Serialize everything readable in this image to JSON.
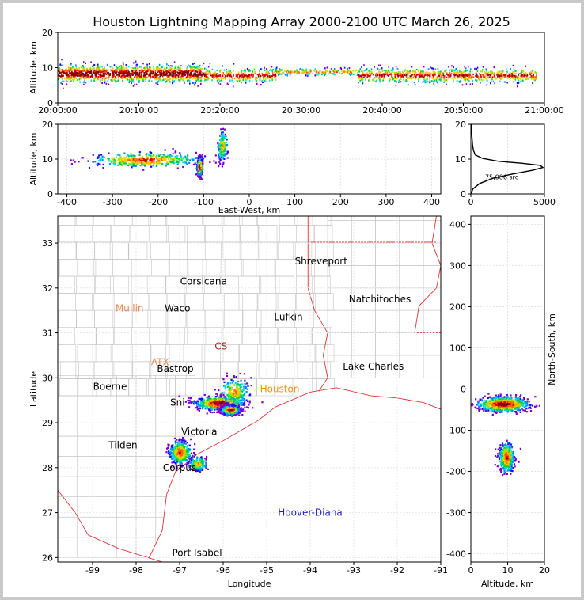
{
  "title": "Houston Lightning Mapping Array 2000-2100 UTC March 26, 2025",
  "colors": {
    "border": "#c9c9c9",
    "bg": "#ffffff",
    "state_lines": "#dd2222",
    "county_lines": "#bbbbbb",
    "grid": "#dddddd",
    "coast": "#dd3333"
  },
  "chart_data": [
    {
      "type": "scatter",
      "panel": "altitude-time",
      "ylabel": "Altitude, km",
      "ylim": [
        0,
        20
      ],
      "y_ticks": [
        "0",
        "10",
        "20"
      ],
      "x_ticks": [
        "20:00:00",
        "20:10:00",
        "20:20:00",
        "20:30:00",
        "20:40:00",
        "20:50:00",
        "21:00:00"
      ],
      "xlim_minutes": [
        0,
        60
      ],
      "blobs": [
        {
          "x": [
            0,
            18
          ],
          "y": [
            8.5,
            2.5
          ],
          "level": "dense"
        },
        {
          "x": [
            18,
            27
          ],
          "y": [
            8,
            2
          ],
          "level": "medium"
        },
        {
          "x": [
            27,
            37
          ],
          "y": [
            9,
            1
          ],
          "level": "sparse"
        },
        {
          "x": [
            37,
            59
          ],
          "y": [
            8,
            2
          ],
          "level": "medium"
        }
      ]
    },
    {
      "type": "scatter",
      "panel": "altitude-eastwest",
      "xlabel": "East-West, km",
      "ylabel": "Altitude, km",
      "xlim": [
        -420,
        420
      ],
      "ylim": [
        0,
        20
      ],
      "x_ticks": [
        "-400",
        "-300",
        "-200",
        "-100",
        "0",
        "100",
        "200",
        "300",
        "400"
      ],
      "y_ticks": [
        "0",
        "10",
        "20"
      ],
      "blobs": [
        {
          "x": [
            -230,
            -120
          ],
          "y": [
            10,
            2
          ],
          "level": "medium"
        },
        {
          "x": [
            -110,
            -5
          ],
          "y": [
            8,
            2.5
          ],
          "level": "dense"
        },
        {
          "x": [
            -60,
            -10
          ],
          "y": [
            14,
            4
          ],
          "level": "sparse"
        }
      ]
    },
    {
      "type": "line",
      "panel": "altitude-histogram",
      "xlim": [
        0,
        5000
      ],
      "ylim": [
        0,
        20
      ],
      "x_ticks": [
        "0",
        "5000"
      ],
      "y_ticks": [
        "0",
        "10",
        "20"
      ],
      "annotation": "75,086 src",
      "x": [
        0,
        150,
        600,
        1500,
        2800,
        4200,
        4900,
        4700,
        3500,
        1800,
        800,
        300,
        180,
        120,
        80,
        50,
        30
      ],
      "y": [
        0,
        1.5,
        3,
        4.5,
        5.7,
        6.8,
        7.6,
        8.2,
        8.8,
        9.4,
        10.2,
        11.2,
        12.5,
        14,
        16,
        18,
        20
      ]
    },
    {
      "type": "scatter",
      "panel": "plan-view",
      "xlabel": "Longitude",
      "ylabel": "Latitude",
      "xlim": [
        -99.8,
        -91
      ],
      "ylim": [
        25.9,
        33.6
      ],
      "x_ticks": [
        "-99",
        "-98",
        "-97",
        "-96",
        "-95",
        "-94",
        "-93",
        "-92",
        "-91"
      ],
      "y_ticks": [
        "26",
        "27",
        "28",
        "29",
        "30",
        "31",
        "32",
        "33"
      ],
      "blobs": [
        {
          "x": [
            -96.1,
            0.55
          ],
          "y": [
            29.45,
            0.15
          ],
          "level": "dense"
        },
        {
          "x": [
            -95.85,
            0.2
          ],
          "y": [
            29.3,
            0.1
          ],
          "level": "dense"
        },
        {
          "x": [
            -95.75,
            0.3
          ],
          "y": [
            29.7,
            0.3
          ],
          "level": "sparse"
        },
        {
          "x": [
            -97.0,
            0.25
          ],
          "y": [
            28.35,
            0.25
          ],
          "level": "medium"
        },
        {
          "x": [
            -96.6,
            0.2
          ],
          "y": [
            28.1,
            0.15
          ],
          "level": "sparse"
        }
      ],
      "cities": [
        {
          "name": "Shreveport",
          "lon": -93.75,
          "lat": 32.6,
          "color": "#000000"
        },
        {
          "name": "Corsicana",
          "lon": -96.45,
          "lat": 32.15,
          "color": "#000000"
        },
        {
          "name": "Natchitoches",
          "lon": -92.4,
          "lat": 31.75,
          "color": "#000000"
        },
        {
          "name": "Mullin",
          "lon": -98.15,
          "lat": 31.55,
          "color": "#ee8855"
        },
        {
          "name": "Waco",
          "lon": -97.05,
          "lat": 31.55,
          "color": "#000000"
        },
        {
          "name": "Lufkin",
          "lon": -94.5,
          "lat": 31.35,
          "color": "#000000"
        },
        {
          "name": "CS",
          "lon": -96.05,
          "lat": 30.7,
          "color": "#aa2222"
        },
        {
          "name": "ATX",
          "lon": -97.45,
          "lat": 30.35,
          "color": "#ee8855"
        },
        {
          "name": "Bastrop",
          "lon": -97.1,
          "lat": 30.2,
          "color": "#000000"
        },
        {
          "name": "Lake Charles",
          "lon": -92.55,
          "lat": 30.25,
          "color": "#000000"
        },
        {
          "name": "Boerne",
          "lon": -98.6,
          "lat": 29.8,
          "color": "#000000"
        },
        {
          "name": "Houston",
          "lon": -94.7,
          "lat": 29.75,
          "color": "#ee9900"
        },
        {
          "name": "Sni",
          "lon": -97.05,
          "lat": 29.45,
          "color": "#000000"
        },
        {
          "name": "Victoria",
          "lon": -96.55,
          "lat": 28.8,
          "color": "#000000"
        },
        {
          "name": "Tilden",
          "lon": -98.3,
          "lat": 28.5,
          "color": "#000000"
        },
        {
          "name": "Corpus",
          "lon": -97.0,
          "lat": 28.0,
          "color": "#000000"
        },
        {
          "name": "Hoover-Diana",
          "lon": -94.0,
          "lat": 27.0,
          "color": "#2222cc"
        },
        {
          "name": "Port Isabel",
          "lon": -96.6,
          "lat": 26.1,
          "color": "#000000"
        }
      ]
    },
    {
      "type": "scatter",
      "panel": "northsouth-altitude",
      "xlabel": "Altitude, km",
      "ylabel": "North-South, km",
      "xlim": [
        0,
        20
      ],
      "ylim": [
        -420,
        420
      ],
      "x_ticks": [
        "0",
        "10",
        "20"
      ],
      "y_ticks": [
        "-400",
        "-300",
        "-200",
        "-100",
        "0",
        "100",
        "200",
        "300",
        "400"
      ],
      "blobs": [
        {
          "x": [
            8.5,
            7
          ],
          "y": [
            -35,
            18
          ],
          "level": "dense"
        },
        {
          "x": [
            9.5,
            2
          ],
          "y": [
            -165,
            35
          ],
          "level": "medium"
        }
      ]
    }
  ]
}
